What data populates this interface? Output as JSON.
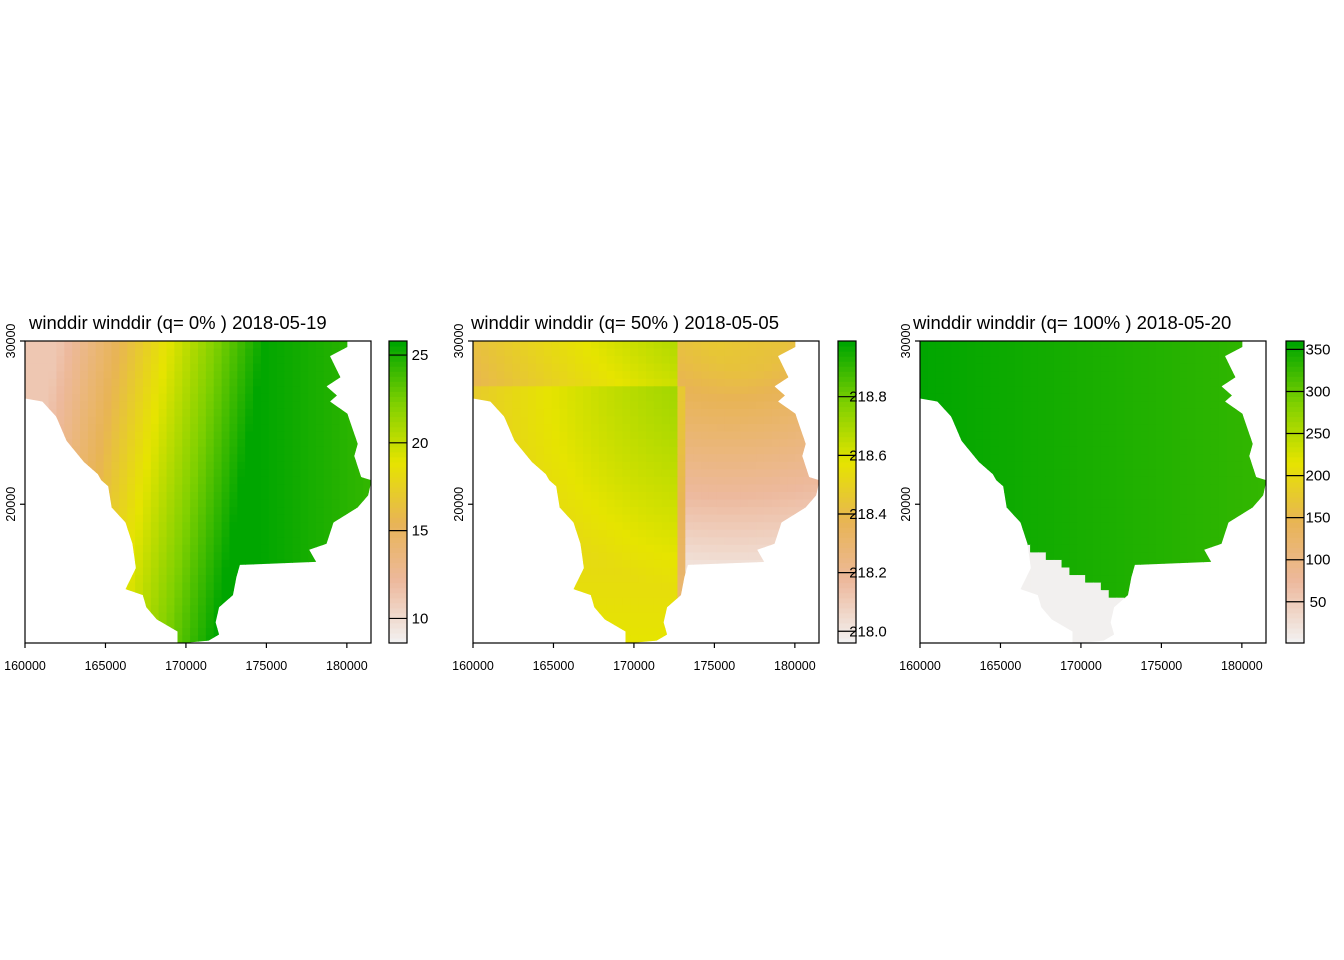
{
  "chart_data": [
    {
      "type": "heatmap",
      "title": "winddir winddir (q= 0% ) 2018-05-19",
      "x_ticks": [
        160000,
        165000,
        170000,
        175000,
        180000
      ],
      "y_ticks": [
        20000,
        30000
      ],
      "xlim": [
        160000,
        181500
      ],
      "ylim": [
        11500,
        30000
      ],
      "legend": {
        "ticks": [
          10,
          15,
          20,
          25
        ],
        "range": [
          8.6,
          25.8
        ]
      },
      "field": "ridge",
      "colors": [
        "#f2f0ef",
        "#edb99d",
        "#e8b455",
        "#e6e400",
        "#7fd000",
        "#00a600"
      ]
    },
    {
      "type": "heatmap",
      "title": "winddir winddir (q= 50% ) 2018-05-05",
      "x_ticks": [
        160000,
        165000,
        170000,
        175000,
        180000
      ],
      "y_ticks": [
        20000,
        30000
      ],
      "xlim": [
        160000,
        181500
      ],
      "ylim": [
        11500,
        30000
      ],
      "legend": {
        "ticks": [
          218.0,
          218.2,
          218.4,
          218.6,
          218.8
        ],
        "tick_labels": [
          "218.0",
          "218.2",
          "218.4",
          "218.6",
          "218.8"
        ],
        "range": [
          217.96,
          218.99
        ]
      },
      "field": "curve",
      "colors": [
        "#f2f0ef",
        "#edb99d",
        "#e8b455",
        "#e6e400",
        "#7fd000",
        "#00a600"
      ]
    },
    {
      "type": "heatmap",
      "title": "winddir winddir (q= 100% ) 2018-05-20",
      "x_ticks": [
        160000,
        165000,
        170000,
        175000,
        180000
      ],
      "y_ticks": [
        20000,
        30000
      ],
      "xlim": [
        160000,
        181500
      ],
      "ylim": [
        11500,
        30000
      ],
      "legend": {
        "ticks": [
          50,
          100,
          150,
          200,
          250,
          300,
          350
        ],
        "range": [
          1,
          360
        ]
      },
      "field": "split",
      "colors": [
        "#f2f0ef",
        "#edb99d",
        "#e8b455",
        "#e6e400",
        "#7fd000",
        "#00a600"
      ]
    }
  ]
}
